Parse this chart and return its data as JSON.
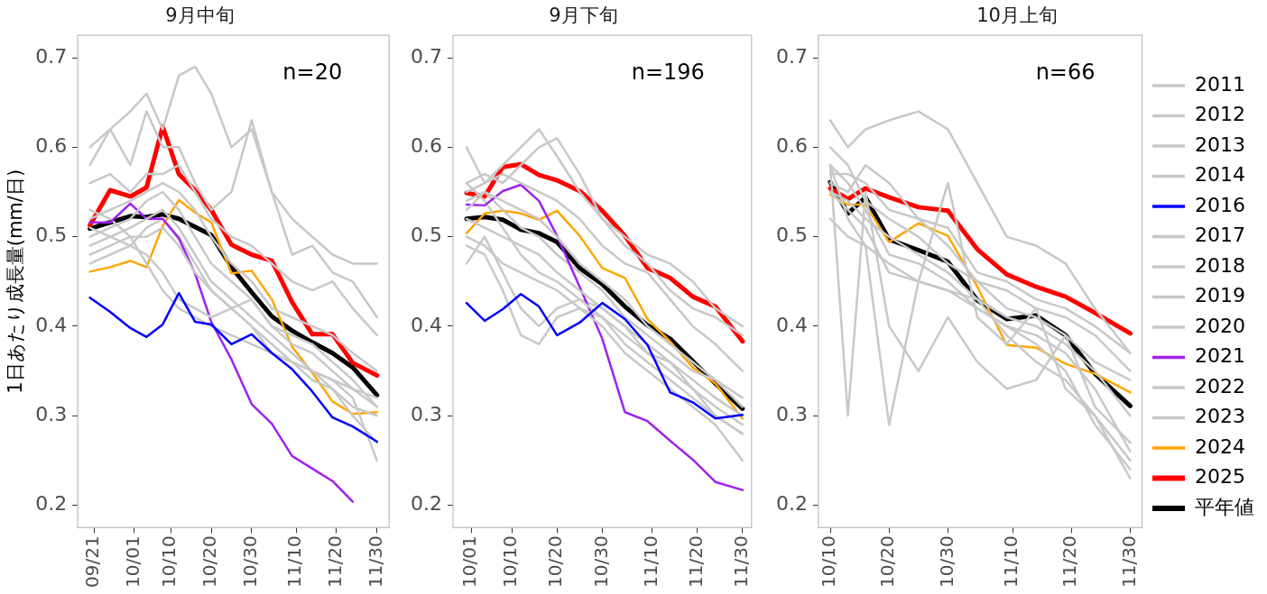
{
  "chart_data": [
    {
      "type": "line",
      "title": "9月中旬",
      "ylabel": "1日あたり成長量(mm/日)",
      "annotations": [
        "n=20"
      ],
      "marker": "none",
      "line_style": "solid",
      "x": [
        "--09-20",
        "--09-25",
        "--09-30",
        "--10-04",
        "--10-08",
        "--10-12",
        "--10-16",
        "--10-20",
        "--10-25",
        "--10-30",
        "--11-04",
        "--11-09",
        "--11-14",
        "--11-19",
        "--11-24",
        "--11-30"
      ],
      "xlim": [
        "--09-17",
        "--12-03"
      ],
      "xticks": [
        {
          "value": "--09-21",
          "label": "09/21"
        },
        {
          "value": "--10-01",
          "label": "10/01"
        },
        {
          "value": "--10-10",
          "label": "10/10"
        },
        {
          "value": "--10-20",
          "label": "10/20"
        },
        {
          "value": "--10-30",
          "label": "10/30"
        },
        {
          "value": "--11-10",
          "label": "11/10"
        },
        {
          "value": "--11-20",
          "label": "11/20"
        },
        {
          "value": "--11-30",
          "label": "11/30"
        }
      ],
      "ylim": [
        0.175,
        0.725
      ],
      "yticks": [
        0.2,
        0.3,
        0.4,
        0.5,
        0.6,
        0.7
      ],
      "series": [
        {
          "color": "#c8c8c8",
          "values": [
            0.58,
            0.62,
            0.64,
            0.66,
            0.62,
            0.68,
            0.69,
            0.66,
            0.6,
            0.62,
            0.55,
            0.52,
            0.5,
            0.48,
            0.47,
            0.47
          ]
        },
        {
          "color": "#c8c8c8",
          "values": [
            0.6,
            0.62,
            0.58,
            0.64,
            0.6,
            0.6,
            0.56,
            0.53,
            0.55,
            0.63,
            0.55,
            0.48,
            0.49,
            0.46,
            0.45,
            0.41
          ]
        },
        {
          "color": "#c8c8c8",
          "values": [
            0.56,
            0.57,
            0.55,
            0.57,
            0.57,
            0.58,
            0.55,
            0.52,
            0.5,
            0.49,
            0.47,
            0.45,
            0.44,
            0.45,
            0.42,
            0.39
          ]
        },
        {
          "color": "#c8c8c8",
          "values": [
            0.52,
            0.53,
            0.54,
            0.55,
            0.56,
            0.55,
            0.53,
            0.5,
            0.47,
            0.45,
            0.42,
            0.41,
            0.4,
            0.39,
            0.37,
            0.35
          ]
        },
        {
          "color": "#0000ff",
          "values": [
            0.432,
            0.416,
            0.398,
            0.388,
            0.402,
            0.437,
            0.405,
            0.402,
            0.38,
            0.391,
            0.37,
            0.352,
            0.327,
            0.298,
            0.288,
            0.271
          ]
        },
        {
          "color": "#c8c8c8",
          "values": [
            0.5,
            0.51,
            0.52,
            0.54,
            0.55,
            0.53,
            0.5,
            0.47,
            0.45,
            0.43,
            0.4,
            0.39,
            0.38,
            0.36,
            0.34,
            0.31
          ]
        },
        {
          "color": "#c8c8c8",
          "values": [
            0.49,
            0.5,
            0.51,
            0.52,
            0.53,
            0.51,
            0.48,
            0.45,
            0.43,
            0.41,
            0.39,
            0.37,
            0.35,
            0.33,
            0.31,
            0.3
          ]
        },
        {
          "color": "#c8c8c8",
          "values": [
            0.48,
            0.49,
            0.5,
            0.5,
            0.51,
            0.49,
            0.46,
            0.44,
            0.42,
            0.4,
            0.38,
            0.36,
            0.34,
            0.33,
            0.3,
            0.27
          ]
        },
        {
          "color": "#c8c8c8",
          "values": [
            0.51,
            0.5,
            0.49,
            0.48,
            0.46,
            0.43,
            0.42,
            0.41,
            0.42,
            0.43,
            0.4,
            0.38,
            0.37,
            0.35,
            0.33,
            0.31
          ]
        },
        {
          "color": "#a020f0",
          "values": [
            0.516,
            0.516,
            0.537,
            0.52,
            0.52,
            0.498,
            0.459,
            0.405,
            0.363,
            0.313,
            0.291,
            0.255,
            0.241,
            0.227,
            0.204,
            null
          ]
        },
        {
          "color": "#c8c8c8",
          "values": [
            0.53,
            0.52,
            0.5,
            0.47,
            0.44,
            0.42,
            0.41,
            0.4,
            0.39,
            0.38,
            0.37,
            0.36,
            0.35,
            0.34,
            0.32,
            0.25
          ]
        },
        {
          "color": "#c8c8c8",
          "values": [
            0.47,
            0.48,
            0.49,
            0.51,
            0.52,
            0.5,
            0.47,
            0.44,
            0.42,
            0.4,
            0.37,
            0.36,
            0.35,
            0.34,
            0.33,
            0.32
          ]
        },
        {
          "color": "#ffa500",
          "values": [
            0.461,
            0.466,
            0.473,
            0.466,
            0.512,
            0.541,
            0.527,
            0.516,
            0.459,
            0.462,
            0.43,
            0.377,
            0.348,
            0.316,
            0.302,
            0.304
          ]
        },
        {
          "color": "#ff0000",
          "values": [
            0.513,
            0.552,
            0.545,
            0.555,
            0.623,
            0.57,
            0.552,
            0.53,
            0.491,
            0.48,
            0.473,
            0.427,
            0.391,
            0.391,
            0.359,
            0.345
          ]
        },
        {
          "color": "#000000",
          "values": [
            0.509,
            0.516,
            0.523,
            0.522,
            0.525,
            0.52,
            0.511,
            0.502,
            0.466,
            0.438,
            0.411,
            0.395,
            0.382,
            0.37,
            0.354,
            0.323
          ]
        }
      ]
    },
    {
      "type": "line",
      "title": "9月下旬",
      "annotations": [
        "n=196"
      ],
      "marker": "none",
      "line_style": "solid",
      "x": [
        "--09-30",
        "--10-04",
        "--10-08",
        "--10-12",
        "--10-16",
        "--10-20",
        "--10-25",
        "--10-30",
        "--11-04",
        "--11-09",
        "--11-14",
        "--11-19",
        "--11-24",
        "--11-30"
      ],
      "xlim": [
        "--09-27",
        "--12-02"
      ],
      "xticks": [
        {
          "value": "--10-01",
          "label": "10/01"
        },
        {
          "value": "--10-10",
          "label": "10/10"
        },
        {
          "value": "--10-20",
          "label": "10/20"
        },
        {
          "value": "--10-30",
          "label": "10/30"
        },
        {
          "value": "--11-10",
          "label": "11/10"
        },
        {
          "value": "--11-20",
          "label": "11/20"
        },
        {
          "value": "--11-30",
          "label": "11/30"
        }
      ],
      "ylim": [
        0.175,
        0.725
      ],
      "yticks": [
        0.2,
        0.3,
        0.4,
        0.5,
        0.6,
        0.7
      ],
      "series": [
        {
          "color": "#c8c8c8",
          "values": [
            0.6,
            0.56,
            0.58,
            0.6,
            0.62,
            0.59,
            0.55,
            0.52,
            0.5,
            0.48,
            0.47,
            0.45,
            0.42,
            0.4
          ]
        },
        {
          "color": "#c8c8c8",
          "values": [
            0.56,
            0.57,
            0.56,
            0.58,
            0.6,
            0.61,
            0.57,
            0.52,
            0.49,
            0.47,
            0.44,
            0.42,
            0.41,
            0.39
          ]
        },
        {
          "color": "#c8c8c8",
          "values": [
            0.55,
            0.56,
            0.57,
            0.56,
            0.55,
            0.54,
            0.52,
            0.49,
            0.47,
            0.46,
            0.43,
            0.4,
            0.38,
            0.35
          ]
        },
        {
          "color": "#c8c8c8",
          "values": [
            0.53,
            0.55,
            0.54,
            0.53,
            0.52,
            0.5,
            0.47,
            0.45,
            0.43,
            0.4,
            0.38,
            0.36,
            0.34,
            0.32
          ]
        },
        {
          "color": "#0000ff",
          "values": [
            0.426,
            0.406,
            0.419,
            0.436,
            0.422,
            0.39,
            0.404,
            0.426,
            0.408,
            0.379,
            0.326,
            0.315,
            0.297,
            0.301
          ]
        },
        {
          "color": "#c8c8c8",
          "values": [
            0.52,
            0.51,
            0.5,
            0.49,
            0.48,
            0.46,
            0.44,
            0.42,
            0.4,
            0.38,
            0.36,
            0.34,
            0.32,
            0.3
          ]
        },
        {
          "color": "#c8c8c8",
          "values": [
            0.5,
            0.49,
            0.47,
            0.46,
            0.45,
            0.44,
            0.42,
            0.41,
            0.39,
            0.37,
            0.35,
            0.33,
            0.31,
            0.29
          ]
        },
        {
          "color": "#c8c8c8",
          "values": [
            0.47,
            0.5,
            0.46,
            0.42,
            0.4,
            0.42,
            0.43,
            0.41,
            0.38,
            0.36,
            0.34,
            0.32,
            0.3,
            0.28
          ]
        },
        {
          "color": "#c8c8c8",
          "values": [
            0.49,
            0.48,
            0.44,
            0.39,
            0.38,
            0.41,
            0.42,
            0.4,
            0.37,
            0.35,
            0.33,
            0.31,
            0.29,
            0.25
          ]
        },
        {
          "color": "#a020f0",
          "values": [
            0.536,
            0.535,
            0.551,
            0.558,
            0.54,
            0.501,
            0.444,
            0.386,
            0.304,
            0.294,
            0.272,
            0.251,
            0.226,
            0.217
          ]
        },
        {
          "color": "#c8c8c8",
          "values": [
            0.56,
            0.54,
            0.51,
            0.48,
            0.46,
            0.45,
            0.43,
            0.42,
            0.4,
            0.37,
            0.36,
            0.33,
            0.3,
            0.28
          ]
        },
        {
          "color": "#c8c8c8",
          "values": [
            0.54,
            0.55,
            0.53,
            0.51,
            0.5,
            0.48,
            0.46,
            0.44,
            0.41,
            0.39,
            0.37,
            0.35,
            0.34,
            0.31
          ]
        },
        {
          "color": "#ffa500",
          "values": [
            0.504,
            0.526,
            0.529,
            0.526,
            0.519,
            0.529,
            0.501,
            0.465,
            0.454,
            0.408,
            0.383,
            0.354,
            0.336,
            0.297
          ]
        },
        {
          "color": "#ff0000",
          "values": [
            0.549,
            0.545,
            0.578,
            0.581,
            0.569,
            0.563,
            0.551,
            0.529,
            0.501,
            0.465,
            0.454,
            0.433,
            0.422,
            0.383
          ]
        },
        {
          "color": "#000000",
          "values": [
            0.52,
            0.522,
            0.519,
            0.508,
            0.504,
            0.494,
            0.465,
            0.447,
            0.422,
            0.401,
            0.386,
            0.361,
            0.336,
            0.308
          ]
        }
      ]
    },
    {
      "type": "line",
      "title": "10月上旬",
      "annotations": [
        "n=66"
      ],
      "marker": "none",
      "line_style": "solid",
      "legend": "right",
      "x": [
        "--10-10",
        "--10-13",
        "--10-16",
        "--10-20",
        "--10-25",
        "--10-30",
        "--11-04",
        "--11-09",
        "--11-14",
        "--11-19",
        "--11-24",
        "--11-30"
      ],
      "xlim": [
        "--10-08",
        "--12-02"
      ],
      "xticks": [
        {
          "value": "--10-10",
          "label": "10/10"
        },
        {
          "value": "--10-20",
          "label": "10/20"
        },
        {
          "value": "--10-30",
          "label": "10/30"
        },
        {
          "value": "--11-10",
          "label": "11/10"
        },
        {
          "value": "--11-20",
          "label": "11/20"
        },
        {
          "value": "--11-30",
          "label": "11/30"
        }
      ],
      "ylim": [
        0.175,
        0.725
      ],
      "yticks": [
        0.2,
        0.3,
        0.4,
        0.5,
        0.6,
        0.7
      ],
      "series": [
        {
          "name": "2011",
          "color": "#c8c8c8",
          "values": [
            0.63,
            0.6,
            0.62,
            0.63,
            0.64,
            0.62,
            0.56,
            0.5,
            0.49,
            0.47,
            0.42,
            0.37
          ]
        },
        {
          "name": "2012",
          "color": "#c8c8c8",
          "values": [
            0.58,
            0.3,
            0.55,
            0.4,
            0.35,
            0.41,
            0.36,
            0.33,
            0.34,
            0.39,
            0.31,
            0.27
          ]
        },
        {
          "name": "2013",
          "color": "#c8c8c8",
          "values": [
            0.58,
            0.52,
            0.49,
            0.29,
            0.45,
            0.56,
            0.41,
            0.38,
            0.42,
            0.33,
            0.3,
            0.25
          ]
        },
        {
          "name": "2014",
          "color": "#c8c8c8",
          "values": [
            0.57,
            0.57,
            0.56,
            0.53,
            0.52,
            0.51,
            0.46,
            0.45,
            0.43,
            0.42,
            0.4,
            0.37
          ]
        },
        {
          "name": "2016",
          "color": "#0000ff",
          "values": [
            null,
            null,
            null,
            null,
            null,
            null,
            null,
            null,
            null,
            null,
            null,
            null
          ]
        },
        {
          "name": "2017",
          "color": "#c8c8c8",
          "values": [
            0.56,
            0.55,
            0.58,
            0.56,
            0.52,
            0.49,
            0.45,
            0.44,
            0.42,
            0.41,
            0.39,
            0.35
          ]
        },
        {
          "name": "2018",
          "color": "#c8c8c8",
          "values": [
            0.55,
            0.54,
            0.52,
            0.5,
            0.48,
            0.46,
            0.43,
            0.41,
            0.4,
            0.38,
            0.35,
            0.3
          ]
        },
        {
          "name": "2019",
          "color": "#c8c8c8",
          "values": [
            0.52,
            0.5,
            0.49,
            0.47,
            0.45,
            0.44,
            0.42,
            0.4,
            0.39,
            0.37,
            0.33,
            0.26
          ]
        },
        {
          "name": "2020",
          "color": "#c8c8c8",
          "values": [
            0.58,
            0.56,
            0.53,
            0.48,
            0.47,
            0.45,
            0.42,
            0.4,
            0.38,
            0.35,
            0.29,
            0.24
          ]
        },
        {
          "name": "2021",
          "color": "#a020f0",
          "values": [
            null,
            null,
            null,
            null,
            null,
            null,
            null,
            null,
            null,
            null,
            null,
            null
          ]
        },
        {
          "name": "2022",
          "color": "#c8c8c8",
          "values": [
            0.55,
            0.53,
            0.51,
            0.46,
            0.45,
            0.44,
            0.43,
            0.39,
            0.36,
            0.34,
            0.3,
            0.23
          ]
        },
        {
          "name": "2023",
          "color": "#c8c8c8",
          "values": [
            0.6,
            0.58,
            0.54,
            0.52,
            0.5,
            0.47,
            0.45,
            0.42,
            0.41,
            0.39,
            0.36,
            0.34
          ]
        },
        {
          "name": "2024",
          "color": "#ffa500",
          "values": [
            0.547,
            0.536,
            0.536,
            0.494,
            0.515,
            0.501,
            0.444,
            0.379,
            0.376,
            0.358,
            0.347,
            0.326
          ]
        },
        {
          "name": "2025",
          "color": "#ff0000",
          "values": [
            0.554,
            0.542,
            0.554,
            0.544,
            0.533,
            0.529,
            0.486,
            0.458,
            0.444,
            0.433,
            0.415,
            0.392
          ]
        },
        {
          "name": "平年値",
          "color": "#000000",
          "values": [
            0.561,
            0.526,
            0.544,
            0.497,
            0.485,
            0.472,
            0.429,
            0.408,
            0.412,
            0.39,
            0.347,
            0.311
          ]
        }
      ]
    }
  ]
}
